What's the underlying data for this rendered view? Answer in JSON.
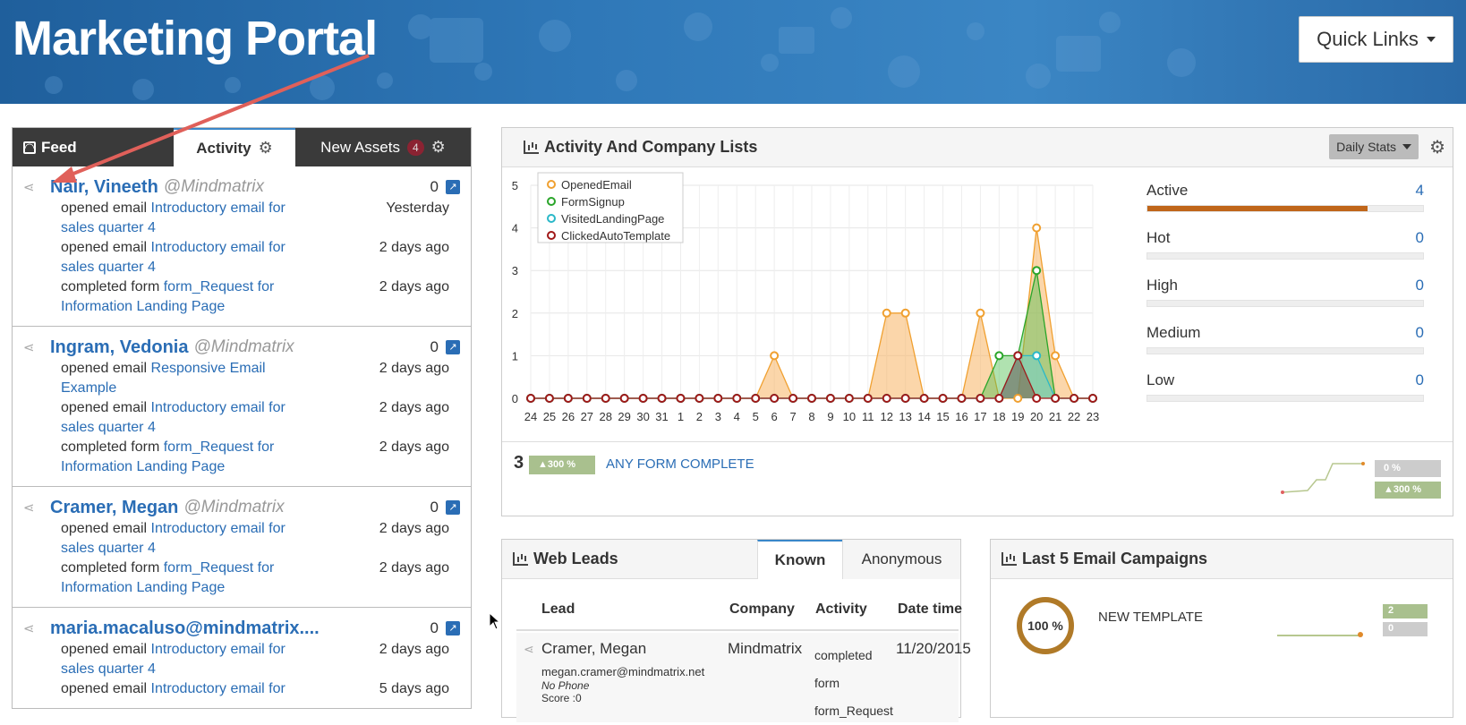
{
  "header": {
    "title": "Marketing Portal",
    "quick_links": "Quick Links"
  },
  "feed": {
    "tabs": {
      "feed": "Feed",
      "activity": "Activity",
      "new_assets": "New Assets",
      "new_assets_count": "4"
    },
    "entries": [
      {
        "name": "Nair, Vineeth",
        "org": "@Mindmatrix",
        "count": "0",
        "lines": [
          {
            "action": "opened email",
            "link": "Introductory email for sales quarter 4",
            "time": "Yesterday"
          },
          {
            "action": "opened email",
            "link": "Introductory email for sales quarter 4",
            "time": "2 days ago"
          },
          {
            "action": "completed form",
            "link": "form_Request for Information Landing Page",
            "time": "2 days ago"
          }
        ]
      },
      {
        "name": "Ingram, Vedonia",
        "org": "@Mindmatrix",
        "count": "0",
        "lines": [
          {
            "action": "opened email",
            "link": "Responsive Email Example",
            "time": "2 days ago"
          },
          {
            "action": "opened email",
            "link": "Introductory email for sales quarter 4",
            "time": "2 days ago"
          },
          {
            "action": "completed form",
            "link": "form_Request for Information Landing Page",
            "time": "2 days ago"
          }
        ]
      },
      {
        "name": "Cramer, Megan",
        "org": "@Mindmatrix",
        "count": "0",
        "lines": [
          {
            "action": "opened email",
            "link": "Introductory email for sales quarter 4",
            "time": "2 days ago"
          },
          {
            "action": "completed form",
            "link": "form_Request for Information Landing Page",
            "time": "2 days ago"
          }
        ]
      },
      {
        "name": "maria.macaluso@mindmatrix....",
        "org": "",
        "count": "0",
        "lines": [
          {
            "action": "opened email",
            "link": "Introductory email for sales quarter 4",
            "time": "2 days ago"
          },
          {
            "action": "opened email",
            "link": "Introductory email for",
            "time": "5 days ago"
          }
        ]
      }
    ]
  },
  "activity_panel": {
    "title": "Activity And Company Lists",
    "daily_stats": "Daily Stats",
    "status_rows": [
      {
        "label": "Active",
        "value": "4",
        "fill": 0.8
      },
      {
        "label": "Hot",
        "value": "0",
        "fill": 0
      },
      {
        "label": "High",
        "value": "0",
        "fill": 0
      },
      {
        "label": "Medium",
        "value": "0",
        "fill": 0
      },
      {
        "label": "Low",
        "value": "0",
        "fill": 0
      }
    ],
    "summary": {
      "number": "3",
      "percent": "300 %",
      "label": "ANY FORM COMPLETE",
      "spark_badge_1": "0 %",
      "spark_badge_2": "300 %"
    }
  },
  "chart_data": {
    "type": "area",
    "x": [
      "24",
      "25",
      "26",
      "27",
      "28",
      "29",
      "30",
      "31",
      "1",
      "2",
      "3",
      "4",
      "5",
      "6",
      "7",
      "8",
      "9",
      "10",
      "11",
      "12",
      "13",
      "14",
      "15",
      "16",
      "17",
      "18",
      "19",
      "20",
      "21",
      "22",
      "23"
    ],
    "ylim": [
      0,
      5
    ],
    "yticks": [
      "0",
      "1",
      "2",
      "3",
      "4",
      "5"
    ],
    "legend_position": "top-left",
    "grid": true,
    "series": [
      {
        "name": "OpenedEmail",
        "color": "#f0a030",
        "values": [
          0,
          0,
          0,
          0,
          0,
          0,
          0,
          0,
          0,
          0,
          0,
          0,
          0,
          1,
          0,
          0,
          0,
          0,
          0,
          2,
          2,
          0,
          0,
          0,
          2,
          0,
          0,
          4,
          1,
          0,
          0
        ]
      },
      {
        "name": "FormSignup",
        "color": "#2aa52a",
        "values": [
          0,
          0,
          0,
          0,
          0,
          0,
          0,
          0,
          0,
          0,
          0,
          0,
          0,
          0,
          0,
          0,
          0,
          0,
          0,
          0,
          0,
          0,
          0,
          0,
          0,
          1,
          1,
          3,
          0,
          0,
          0
        ]
      },
      {
        "name": "VisitedLandingPage",
        "color": "#2ab8c8",
        "values": [
          0,
          0,
          0,
          0,
          0,
          0,
          0,
          0,
          0,
          0,
          0,
          0,
          0,
          0,
          0,
          0,
          0,
          0,
          0,
          0,
          0,
          0,
          0,
          0,
          0,
          0,
          1,
          1,
          0,
          0,
          0
        ]
      },
      {
        "name": "ClickedAutoTemplate",
        "color": "#a01818",
        "values": [
          0,
          0,
          0,
          0,
          0,
          0,
          0,
          0,
          0,
          0,
          0,
          0,
          0,
          0,
          0,
          0,
          0,
          0,
          0,
          0,
          0,
          0,
          0,
          0,
          0,
          0,
          1,
          0,
          0,
          0,
          0
        ]
      }
    ]
  },
  "web_leads": {
    "title": "Web Leads",
    "tabs": [
      "Known",
      "Anonymous"
    ],
    "columns": [
      "Lead",
      "Company",
      "Activity",
      "Date time"
    ],
    "rows": [
      {
        "name": "Cramer, Megan",
        "email": "megan.cramer@mindmatrix.net",
        "phone": "No Phone",
        "score": "Score :0",
        "company": "Mindmatrix",
        "activity": "completed form form_Request",
        "date": "11/20/2015"
      }
    ]
  },
  "email_campaigns": {
    "title": "Last 5 Email Campaigns",
    "items": [
      {
        "percent": "100 %",
        "name": "NEW TEMPLATE",
        "badge1": "2",
        "badge2": "0"
      }
    ]
  }
}
